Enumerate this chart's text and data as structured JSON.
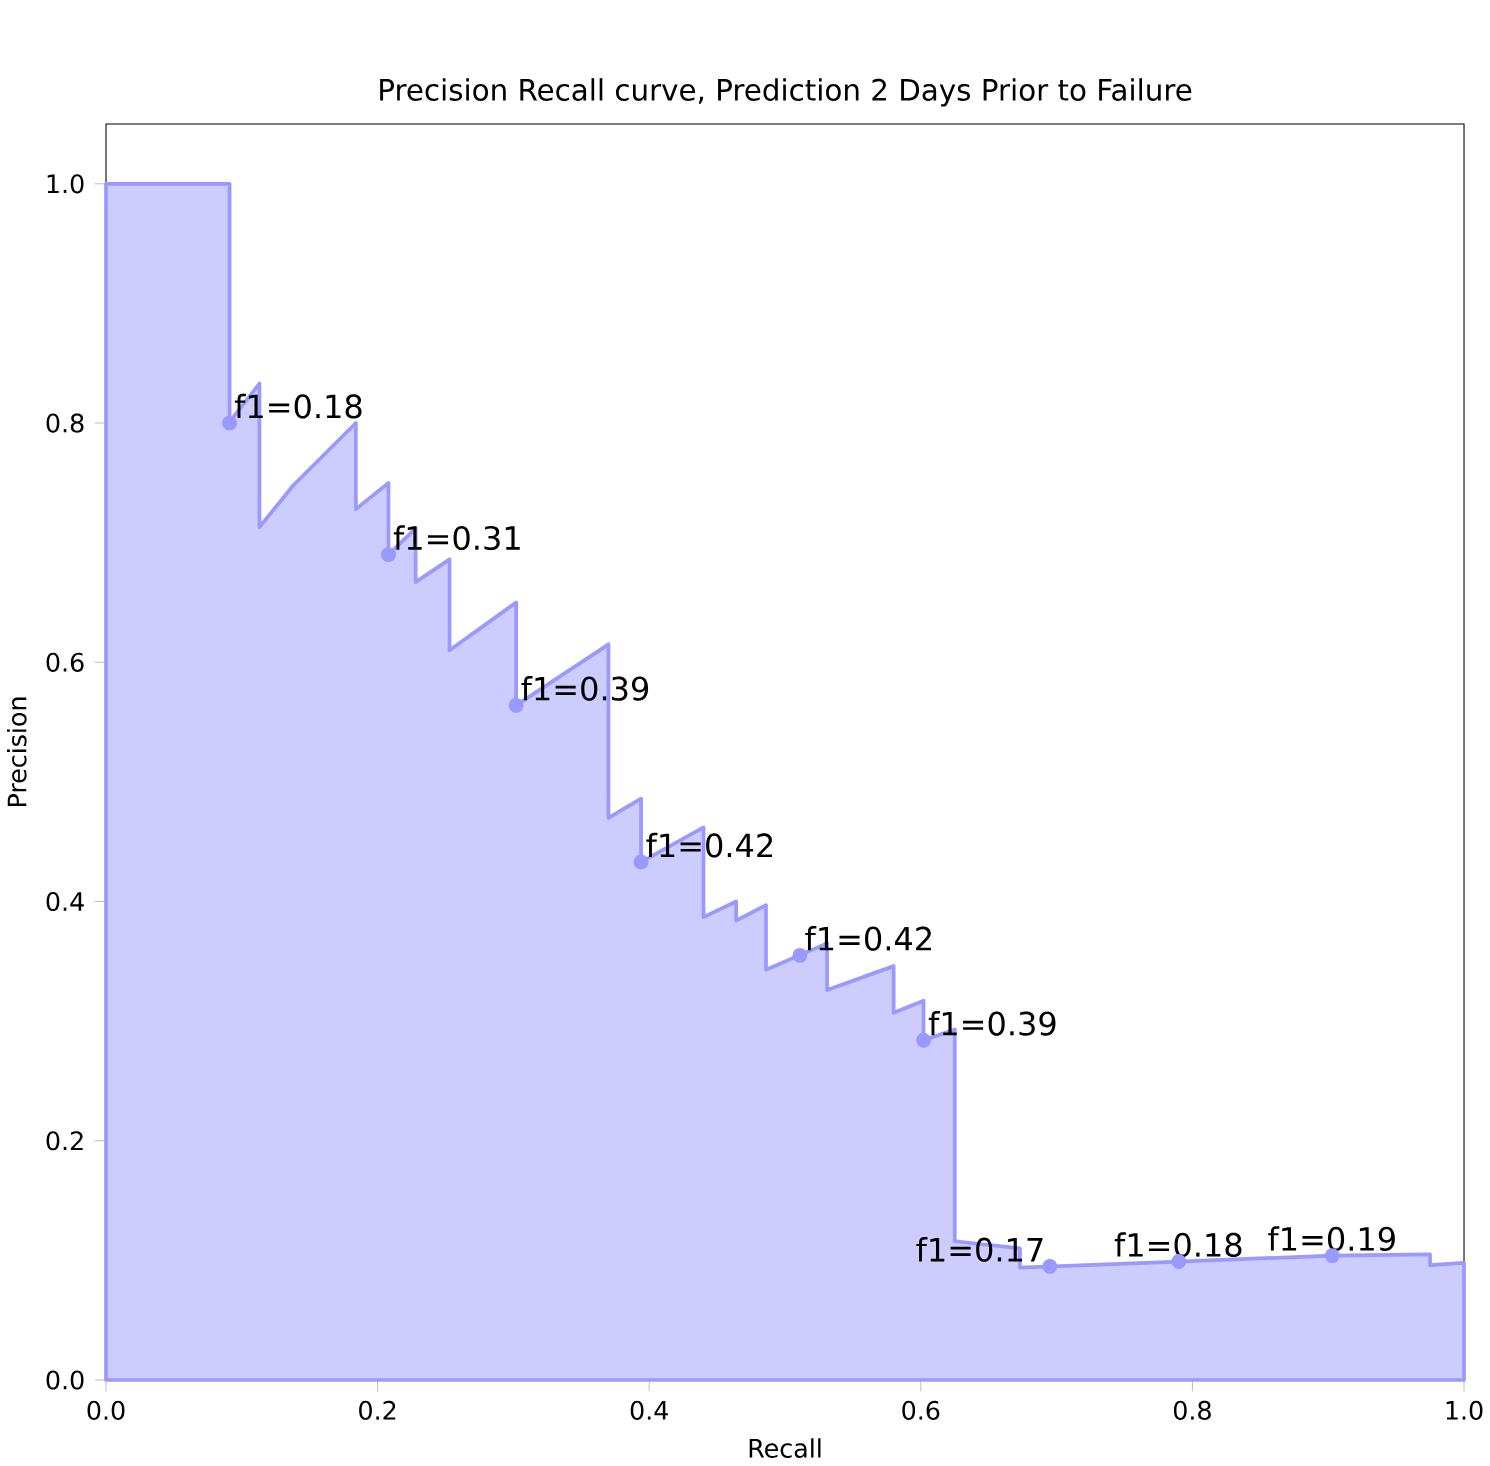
{
  "chart_data": {
    "type": "area",
    "title": "Precision Recall curve, Prediction 2 Days Prior to Failure",
    "xlabel": "Recall",
    "ylabel": "Precision",
    "xlim": [
      0,
      1
    ],
    "ylim": [
      0,
      1.05
    ],
    "xticks": [
      {
        "value": 0,
        "label": "0.0"
      },
      {
        "value": 0.2,
        "label": "0.2"
      },
      {
        "value": 0.4,
        "label": "0.4"
      },
      {
        "value": 0.6,
        "label": "0.6"
      },
      {
        "value": 0.8,
        "label": "0.8"
      },
      {
        "value": 1,
        "label": "1.0"
      }
    ],
    "yticks": [
      {
        "value": 0,
        "label": "0.0"
      },
      {
        "value": 0.2,
        "label": "0.2"
      },
      {
        "value": 0.4,
        "label": "0.4"
      },
      {
        "value": 0.6,
        "label": "0.6"
      },
      {
        "value": 0.8,
        "label": "0.8"
      },
      {
        "value": 1,
        "label": "1.0"
      }
    ],
    "series": [
      {
        "color": "#9999ff",
        "x": [
          0,
          0.091,
          0.091,
          0.113,
          0.113,
          0.138,
          0.184,
          0.184,
          0.208,
          0.208,
          0.228,
          0.228,
          0.253,
          0.253,
          0.302,
          0.302,
          0.37,
          0.37,
          0.394,
          0.394,
          0.44,
          0.44,
          0.464,
          0.464,
          0.486,
          0.486,
          0.531,
          0.531,
          0.58,
          0.58,
          0.602,
          0.602,
          0.625,
          0.625,
          0.673,
          0.673,
          0.79,
          0.903,
          0.975,
          0.975,
          1.0
        ],
        "values": [
          1.0,
          1.0,
          0.801,
          0.833,
          0.713,
          0.748,
          0.8,
          0.728,
          0.75,
          0.69,
          0.712,
          0.667,
          0.686,
          0.61,
          0.65,
          0.564,
          0.615,
          0.47,
          0.486,
          0.433,
          0.462,
          0.387,
          0.4,
          0.384,
          0.397,
          0.343,
          0.365,
          0.326,
          0.346,
          0.307,
          0.317,
          0.284,
          0.293,
          0.116,
          0.11,
          0.094,
          0.099,
          0.104,
          0.105,
          0.096,
          0.098
        ]
      },
      {
        "type": "scatter",
        "marker": "circle",
        "color": "#9999ff",
        "x": [
          0.091,
          0.208,
          0.302,
          0.394,
          0.511,
          0.602,
          0.695,
          0.79,
          0.903
        ],
        "values": [
          0.8,
          0.69,
          0.564,
          0.433,
          0.355,
          0.284,
          0.095,
          0.099,
          0.104
        ],
        "value_labels": [
          "f1=0.18",
          "f1=0.31",
          "f1=0.39",
          "f1=0.42",
          "f1=0.42",
          "f1=0.39",
          "f1=0.17",
          "f1=0.18",
          "f1=0.19"
        ]
      }
    ],
    "grid": false
  }
}
